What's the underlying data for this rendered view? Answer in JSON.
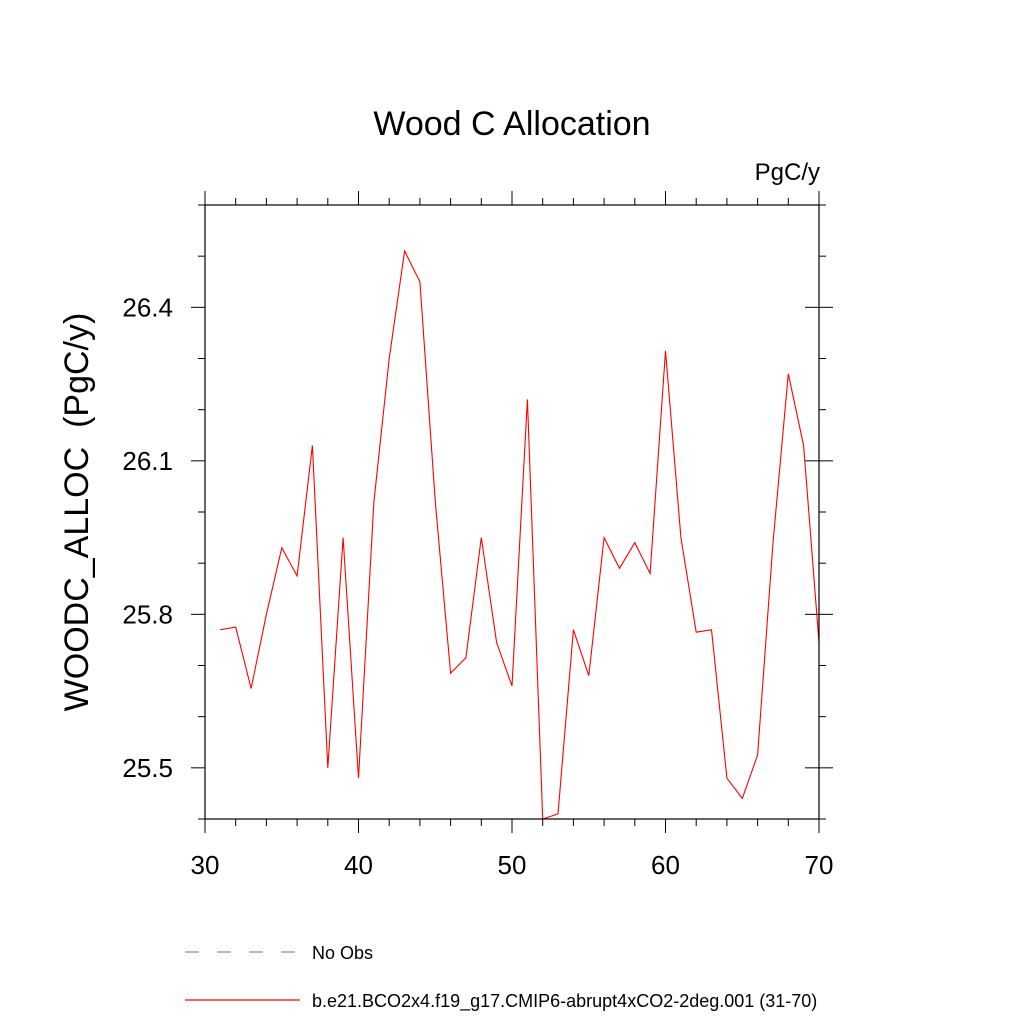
{
  "chart_data": {
    "type": "line",
    "title": "Wood C Allocation",
    "subtitle": "PgC/y",
    "ylabel": "WOODC_ALLOC  (PgC/y)",
    "xlabel": "",
    "xlim": [
      30,
      70
    ],
    "ylim": [
      25.4,
      26.6
    ],
    "xticks": [
      30,
      40,
      50,
      60,
      70
    ],
    "xtick_labels": [
      "30",
      "40",
      "50",
      "60",
      "70"
    ],
    "yticks": [
      25.5,
      25.8,
      26.1,
      26.4
    ],
    "ytick_labels": [
      "25.5",
      "25.8",
      "26.1",
      "26.4"
    ],
    "grid": false,
    "legend_placement": "bottom",
    "series": [
      {
        "name": "b.e21.BCO2x4.f19_g17.CMIP6-abrupt4xCO2-2deg.001 (31-70)",
        "color": "#ff0000",
        "dash": "solid",
        "x": [
          31,
          32,
          33,
          34,
          35,
          36,
          37,
          38,
          39,
          40,
          41,
          42,
          43,
          44,
          45,
          46,
          47,
          48,
          49,
          50,
          51,
          52,
          53,
          54,
          55,
          56,
          57,
          58,
          59,
          60,
          61,
          62,
          63,
          64,
          65,
          66,
          67,
          68,
          69,
          70
        ],
        "values": [
          25.77,
          25.775,
          25.655,
          25.8,
          25.93,
          25.875,
          26.13,
          25.5,
          25.95,
          25.48,
          26.02,
          26.3,
          26.51,
          26.45,
          26.02,
          25.685,
          25.715,
          25.95,
          25.745,
          25.66,
          26.22,
          25.4,
          25.41,
          25.77,
          25.68,
          25.95,
          25.89,
          25.94,
          25.88,
          26.315,
          25.95,
          25.765,
          25.77,
          25.48,
          25.44,
          25.525,
          25.94,
          26.27,
          26.13,
          25.745
        ]
      },
      {
        "name": "No Obs",
        "color": "#8a84d8",
        "dash": "dashed",
        "x": [],
        "values": []
      }
    ]
  }
}
